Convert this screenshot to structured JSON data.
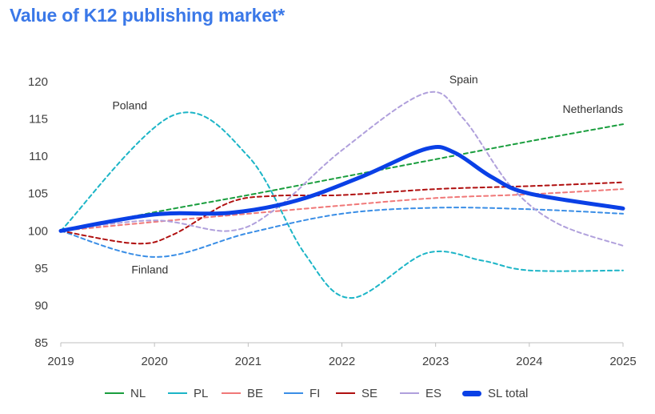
{
  "title": "Value of K12 publishing market*",
  "chart_data": {
    "type": "line",
    "x": [
      2019,
      2020,
      2021,
      2022,
      2023,
      2024,
      2025
    ],
    "xlim": [
      2019,
      2025
    ],
    "ylim": [
      85,
      120
    ],
    "yticks": [
      85,
      90,
      95,
      100,
      105,
      110,
      115,
      120
    ],
    "grid": false,
    "legend_position": "bottom",
    "series": [
      {
        "name": "NL",
        "color": "#1a9e3e",
        "dashed": true,
        "width": 2,
        "x": [
          2019,
          2020,
          2021,
          2022,
          2023,
          2024,
          2025
        ],
        "values": [
          100,
          102.5,
          104.8,
          107.2,
          109.6,
          112,
          114.3
        ]
      },
      {
        "name": "PL",
        "color": "#1cb5c7",
        "dashed": true,
        "width": 2,
        "x": [
          2019,
          2020.2,
          2021,
          2021.6,
          2022.1,
          2022.9,
          2023.5,
          2024,
          2025
        ],
        "values": [
          100,
          115.5,
          110,
          97,
          91,
          97,
          96,
          94.7,
          94.7
        ]
      },
      {
        "name": "BE",
        "color": "#f07878",
        "dashed": true,
        "width": 2,
        "x": [
          2019,
          2020,
          2021,
          2022,
          2023,
          2024,
          2025
        ],
        "values": [
          100,
          101.2,
          102.3,
          103.4,
          104.4,
          104.9,
          105.6
        ]
      },
      {
        "name": "FI",
        "color": "#3a8ee6",
        "dashed": true,
        "width": 2,
        "x": [
          2019,
          2020,
          2021,
          2022,
          2023,
          2024,
          2025
        ],
        "values": [
          100,
          96.5,
          99.7,
          102.3,
          103.1,
          102.9,
          102.3
        ]
      },
      {
        "name": "SE",
        "color": "#b01010",
        "dashed": true,
        "width": 2,
        "x": [
          2019,
          2019.8,
          2020.2,
          2020.8,
          2021.3,
          2022,
          2023,
          2024,
          2025
        ],
        "values": [
          100,
          98.3,
          99.5,
          103.8,
          104.7,
          104.8,
          105.6,
          106,
          106.5
        ]
      },
      {
        "name": "ES",
        "color": "#b0a0dc",
        "dashed": true,
        "width": 2,
        "x": [
          2019,
          2020,
          2020.8,
          2021.3,
          2022,
          2022.9,
          2023.3,
          2023.8,
          2024.3,
          2025
        ],
        "values": [
          100,
          101.4,
          100,
          103,
          110.8,
          118.5,
          115,
          106,
          101,
          98
        ]
      },
      {
        "name": "SL total",
        "color": "#0a40e6",
        "dashed": false,
        "width": 5,
        "x": [
          2019,
          2020,
          2020.8,
          2021.5,
          2022.2,
          2022.9,
          2023.2,
          2023.6,
          2024,
          2025
        ],
        "values": [
          100,
          102.2,
          102.4,
          104,
          107.2,
          111,
          110.5,
          107.2,
          105,
          103
        ]
      }
    ],
    "annotations": [
      {
        "text": "Poland",
        "x": 2019.55,
        "y": 116.3,
        "anchor": "start"
      },
      {
        "text": "Finland",
        "x": 2019.95,
        "y": 94.3,
        "anchor": "middle"
      },
      {
        "text": "Spain",
        "x": 2023.3,
        "y": 119.8,
        "anchor": "middle"
      },
      {
        "text": "Netherlands",
        "x": 2025,
        "y": 115.8,
        "anchor": "end"
      }
    ]
  }
}
